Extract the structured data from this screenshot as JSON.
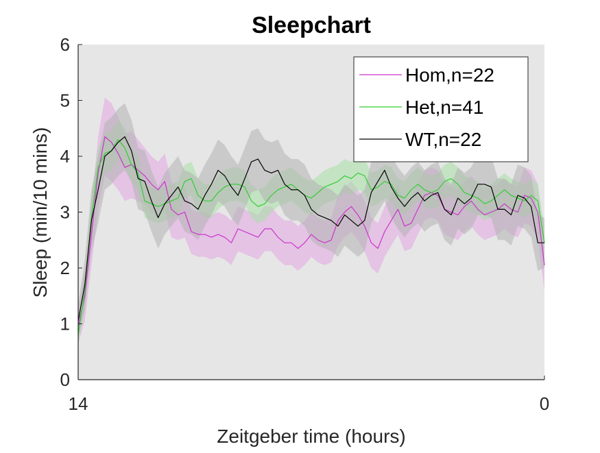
{
  "chart_data": {
    "type": "line",
    "title": "Sleepchart",
    "xlabel": "Zeitgeber time (hours)",
    "ylabel": "Sleep (min/10 mins)",
    "xlim": [
      0,
      84
    ],
    "ylim": [
      0,
      6
    ],
    "x_tick_labels": [
      {
        "x": 0,
        "label": "14"
      },
      {
        "x": 84,
        "label": "0"
      }
    ],
    "y_ticks": [
      "0",
      "1",
      "2",
      "3",
      "4",
      "5",
      "6"
    ],
    "grid": false,
    "background_color": "#e6e6e6",
    "legend": {
      "position": "top-right"
    },
    "series": [
      {
        "name": "Hom,n=22",
        "color": "#cc33cc",
        "band_color": "#e2a6e2",
        "values": [
          0.95,
          1.5,
          2.6,
          3.7,
          4.35,
          4.25,
          4.05,
          3.8,
          3.85,
          3.75,
          3.65,
          3.5,
          3.4,
          3.55,
          3.05,
          2.95,
          3.0,
          2.65,
          2.6,
          2.6,
          2.55,
          2.6,
          2.55,
          2.45,
          2.7,
          2.65,
          2.6,
          2.55,
          2.7,
          2.7,
          2.55,
          2.45,
          2.45,
          2.35,
          2.45,
          2.6,
          2.5,
          2.45,
          2.5,
          2.85,
          3.0,
          3.1,
          2.95,
          2.75,
          2.45,
          2.35,
          2.65,
          2.85,
          3.05,
          2.75,
          2.8,
          3.05,
          3.3,
          3.35,
          3.3,
          3.05,
          3.0,
          2.95,
          3.1,
          3.2,
          3.05,
          2.95,
          3.0,
          3.05,
          3.15,
          3.05,
          3.0,
          3.3,
          3.25,
          3.0,
          2.05
        ],
        "spread": [
          0.3,
          0.45,
          0.55,
          0.65,
          0.7,
          0.7,
          0.65,
          0.6,
          0.6,
          0.55,
          0.5,
          0.5,
          0.5,
          0.5,
          0.5,
          0.45,
          0.45,
          0.4,
          0.4,
          0.4,
          0.4,
          0.4,
          0.4,
          0.4,
          0.4,
          0.4,
          0.4,
          0.4,
          0.4,
          0.4,
          0.4,
          0.4,
          0.4,
          0.4,
          0.4,
          0.4,
          0.4,
          0.4,
          0.4,
          0.45,
          0.45,
          0.45,
          0.45,
          0.45,
          0.45,
          0.45,
          0.45,
          0.45,
          0.45,
          0.45,
          0.45,
          0.45,
          0.45,
          0.45,
          0.45,
          0.45,
          0.45,
          0.45,
          0.45,
          0.45,
          0.45,
          0.45,
          0.45,
          0.45,
          0.45,
          0.45,
          0.45,
          0.5,
          0.5,
          0.5,
          0.45
        ]
      },
      {
        "name": "Het,n=41",
        "color": "#33cc33",
        "band_color": "#a6e0a6",
        "values": [
          0.8,
          1.6,
          2.9,
          3.8,
          4.05,
          4.1,
          4.3,
          4.15,
          3.85,
          3.7,
          3.2,
          3.15,
          3.1,
          3.15,
          3.2,
          3.25,
          3.55,
          3.6,
          3.3,
          3.2,
          3.2,
          3.35,
          3.45,
          3.5,
          3.5,
          3.45,
          3.2,
          3.1,
          3.15,
          3.3,
          3.4,
          3.45,
          3.5,
          3.4,
          3.3,
          3.25,
          3.35,
          3.45,
          3.5,
          3.55,
          3.65,
          3.6,
          3.7,
          3.65,
          3.4,
          3.45,
          3.55,
          3.5,
          3.3,
          3.25,
          3.4,
          3.5,
          3.4,
          3.35,
          3.4,
          3.55,
          3.6,
          3.5,
          3.35,
          3.3,
          3.25,
          3.15,
          3.2,
          3.3,
          3.4,
          3.3,
          3.25,
          3.2,
          3.3,
          3.2,
          2.45
        ],
        "spread": [
          0.2,
          0.3,
          0.35,
          0.35,
          0.35,
          0.35,
          0.35,
          0.35,
          0.3,
          0.3,
          0.3,
          0.3,
          0.3,
          0.3,
          0.3,
          0.3,
          0.3,
          0.3,
          0.3,
          0.3,
          0.3,
          0.3,
          0.3,
          0.3,
          0.3,
          0.3,
          0.3,
          0.3,
          0.3,
          0.3,
          0.3,
          0.3,
          0.3,
          0.3,
          0.3,
          0.3,
          0.3,
          0.3,
          0.3,
          0.3,
          0.3,
          0.3,
          0.3,
          0.3,
          0.3,
          0.3,
          0.3,
          0.3,
          0.3,
          0.3,
          0.3,
          0.3,
          0.3,
          0.3,
          0.3,
          0.3,
          0.3,
          0.3,
          0.3,
          0.3,
          0.3,
          0.3,
          0.3,
          0.3,
          0.3,
          0.3,
          0.3,
          0.3,
          0.3,
          0.3,
          0.25
        ]
      },
      {
        "name": "WT,n=22",
        "color": "#000000",
        "band_color": "#b3b3b3",
        "values": [
          1.05,
          1.7,
          2.85,
          3.4,
          4.0,
          4.1,
          4.25,
          4.35,
          4.1,
          3.6,
          3.55,
          3.2,
          2.9,
          3.15,
          3.3,
          3.45,
          3.2,
          3.15,
          3.05,
          3.3,
          3.5,
          3.75,
          3.65,
          3.45,
          3.3,
          3.6,
          3.9,
          3.95,
          3.75,
          3.7,
          3.75,
          3.5,
          3.4,
          3.4,
          3.3,
          3.05,
          2.95,
          2.9,
          2.85,
          2.75,
          2.95,
          2.85,
          2.75,
          2.85,
          3.35,
          3.55,
          3.75,
          3.45,
          3.25,
          3.1,
          3.25,
          3.35,
          3.2,
          3.3,
          3.35,
          3.05,
          2.95,
          3.25,
          3.15,
          3.25,
          3.5,
          3.5,
          3.45,
          3.05,
          3.05,
          2.95,
          3.3,
          3.25,
          3.1,
          2.45,
          2.45
        ],
        "spread": [
          0.3,
          0.45,
          0.55,
          0.6,
          0.6,
          0.6,
          0.6,
          0.6,
          0.55,
          0.55,
          0.55,
          0.55,
          0.55,
          0.55,
          0.55,
          0.55,
          0.55,
          0.55,
          0.55,
          0.55,
          0.55,
          0.55,
          0.55,
          0.55,
          0.55,
          0.55,
          0.55,
          0.55,
          0.55,
          0.55,
          0.55,
          0.55,
          0.55,
          0.55,
          0.55,
          0.55,
          0.55,
          0.55,
          0.55,
          0.55,
          0.55,
          0.55,
          0.55,
          0.55,
          0.55,
          0.55,
          0.55,
          0.55,
          0.55,
          0.55,
          0.55,
          0.55,
          0.55,
          0.55,
          0.55,
          0.55,
          0.55,
          0.55,
          0.55,
          0.55,
          0.55,
          0.55,
          0.55,
          0.55,
          0.55,
          0.55,
          0.55,
          0.55,
          0.55,
          0.5,
          0.45
        ]
      }
    ]
  }
}
